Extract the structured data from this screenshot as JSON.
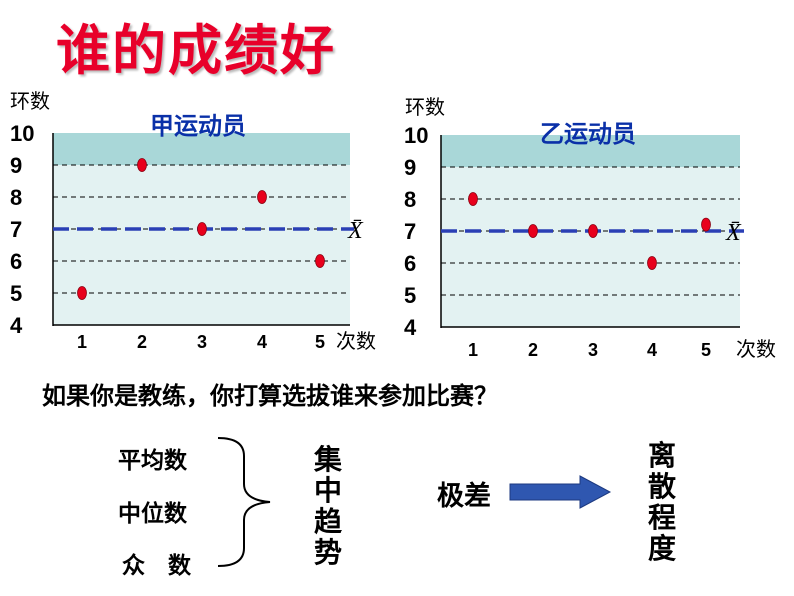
{
  "title": "谁的成绩好",
  "chart_data": [
    {
      "type": "scatter",
      "series_label": "甲运动员",
      "ylabel": "环数",
      "xlabel": "次数",
      "x": [
        1,
        2,
        3,
        4,
        5
      ],
      "y": [
        5,
        9,
        7,
        8,
        6
      ],
      "ylim": [
        4,
        10
      ],
      "yticks": [
        "10",
        "9",
        "8",
        "7",
        "6",
        "5",
        "4"
      ],
      "xticks": [
        "1",
        "2",
        "3",
        "4",
        "5"
      ],
      "mean": 7,
      "mean_label": "X̄",
      "grid": true,
      "point_color": "#e8001c",
      "mean_line_color": "#2a3fb5"
    },
    {
      "type": "scatter",
      "series_label": "乙运动员",
      "ylabel": "环数",
      "xlabel": "次数",
      "x": [
        1,
        2,
        3,
        4,
        5
      ],
      "y": [
        8,
        7,
        7,
        6,
        7.2
      ],
      "ylim": [
        4,
        10
      ],
      "yticks": [
        "10",
        "9",
        "8",
        "7",
        "6",
        "5",
        "4"
      ],
      "xticks": [
        "1",
        "2",
        "3",
        "4",
        "5"
      ],
      "mean": 7,
      "mean_label": "X̄",
      "grid": true,
      "point_color": "#e8001c",
      "mean_line_color": "#2a3fb5"
    }
  ],
  "question": "如果你是教练，你打算选拔谁来参加比赛？",
  "central_measures": [
    "平均数",
    "中位数",
    "众　数"
  ],
  "central_tendency_chars": [
    "集",
    "中",
    "趋",
    "势"
  ],
  "range_label": "极差",
  "dispersion_chars": [
    "离",
    "散",
    "程",
    "度"
  ],
  "colors": {
    "title": "#e8002a",
    "plot_bg_top": "#a9d7d8",
    "plot_bg": "#e3f2f2",
    "arrow": "#2f57b0"
  }
}
